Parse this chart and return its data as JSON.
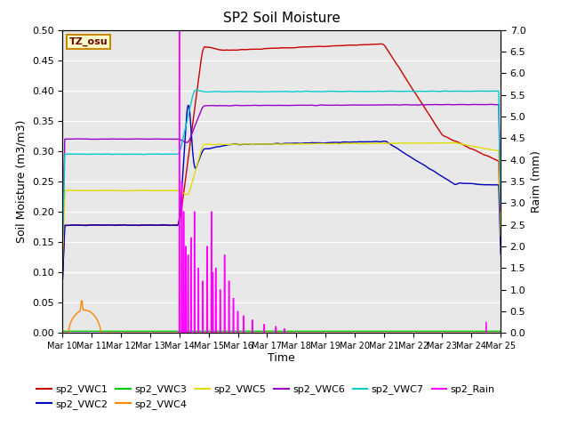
{
  "title": "SP2 Soil Moisture",
  "xlabel": "Time",
  "ylabel_left": "Soil Moisture (m3/m3)",
  "ylabel_right": "Raim (mm)",
  "ylim_left": [
    0.0,
    0.5
  ],
  "ylim_right": [
    0.0,
    7.0
  ],
  "yticks_left": [
    0.0,
    0.05,
    0.1,
    0.15,
    0.2,
    0.25,
    0.3,
    0.35,
    0.4,
    0.45,
    0.5
  ],
  "yticks_right": [
    0.0,
    0.5,
    1.0,
    1.5,
    2.0,
    2.5,
    3.0,
    3.5,
    4.0,
    4.5,
    5.0,
    5.5,
    6.0,
    6.5,
    7.0
  ],
  "bg_color": "#e8e8e8",
  "tz_label": "TZ_osu",
  "colors": {
    "vwc1": "#cc0000",
    "vwc2": "#0000bb",
    "vwc3": "#00cc00",
    "vwc4": "#ff8800",
    "vwc5": "#dddd00",
    "vwc6": "#9900cc",
    "vwc7": "#00cccc",
    "rain": "#ff00ff"
  }
}
